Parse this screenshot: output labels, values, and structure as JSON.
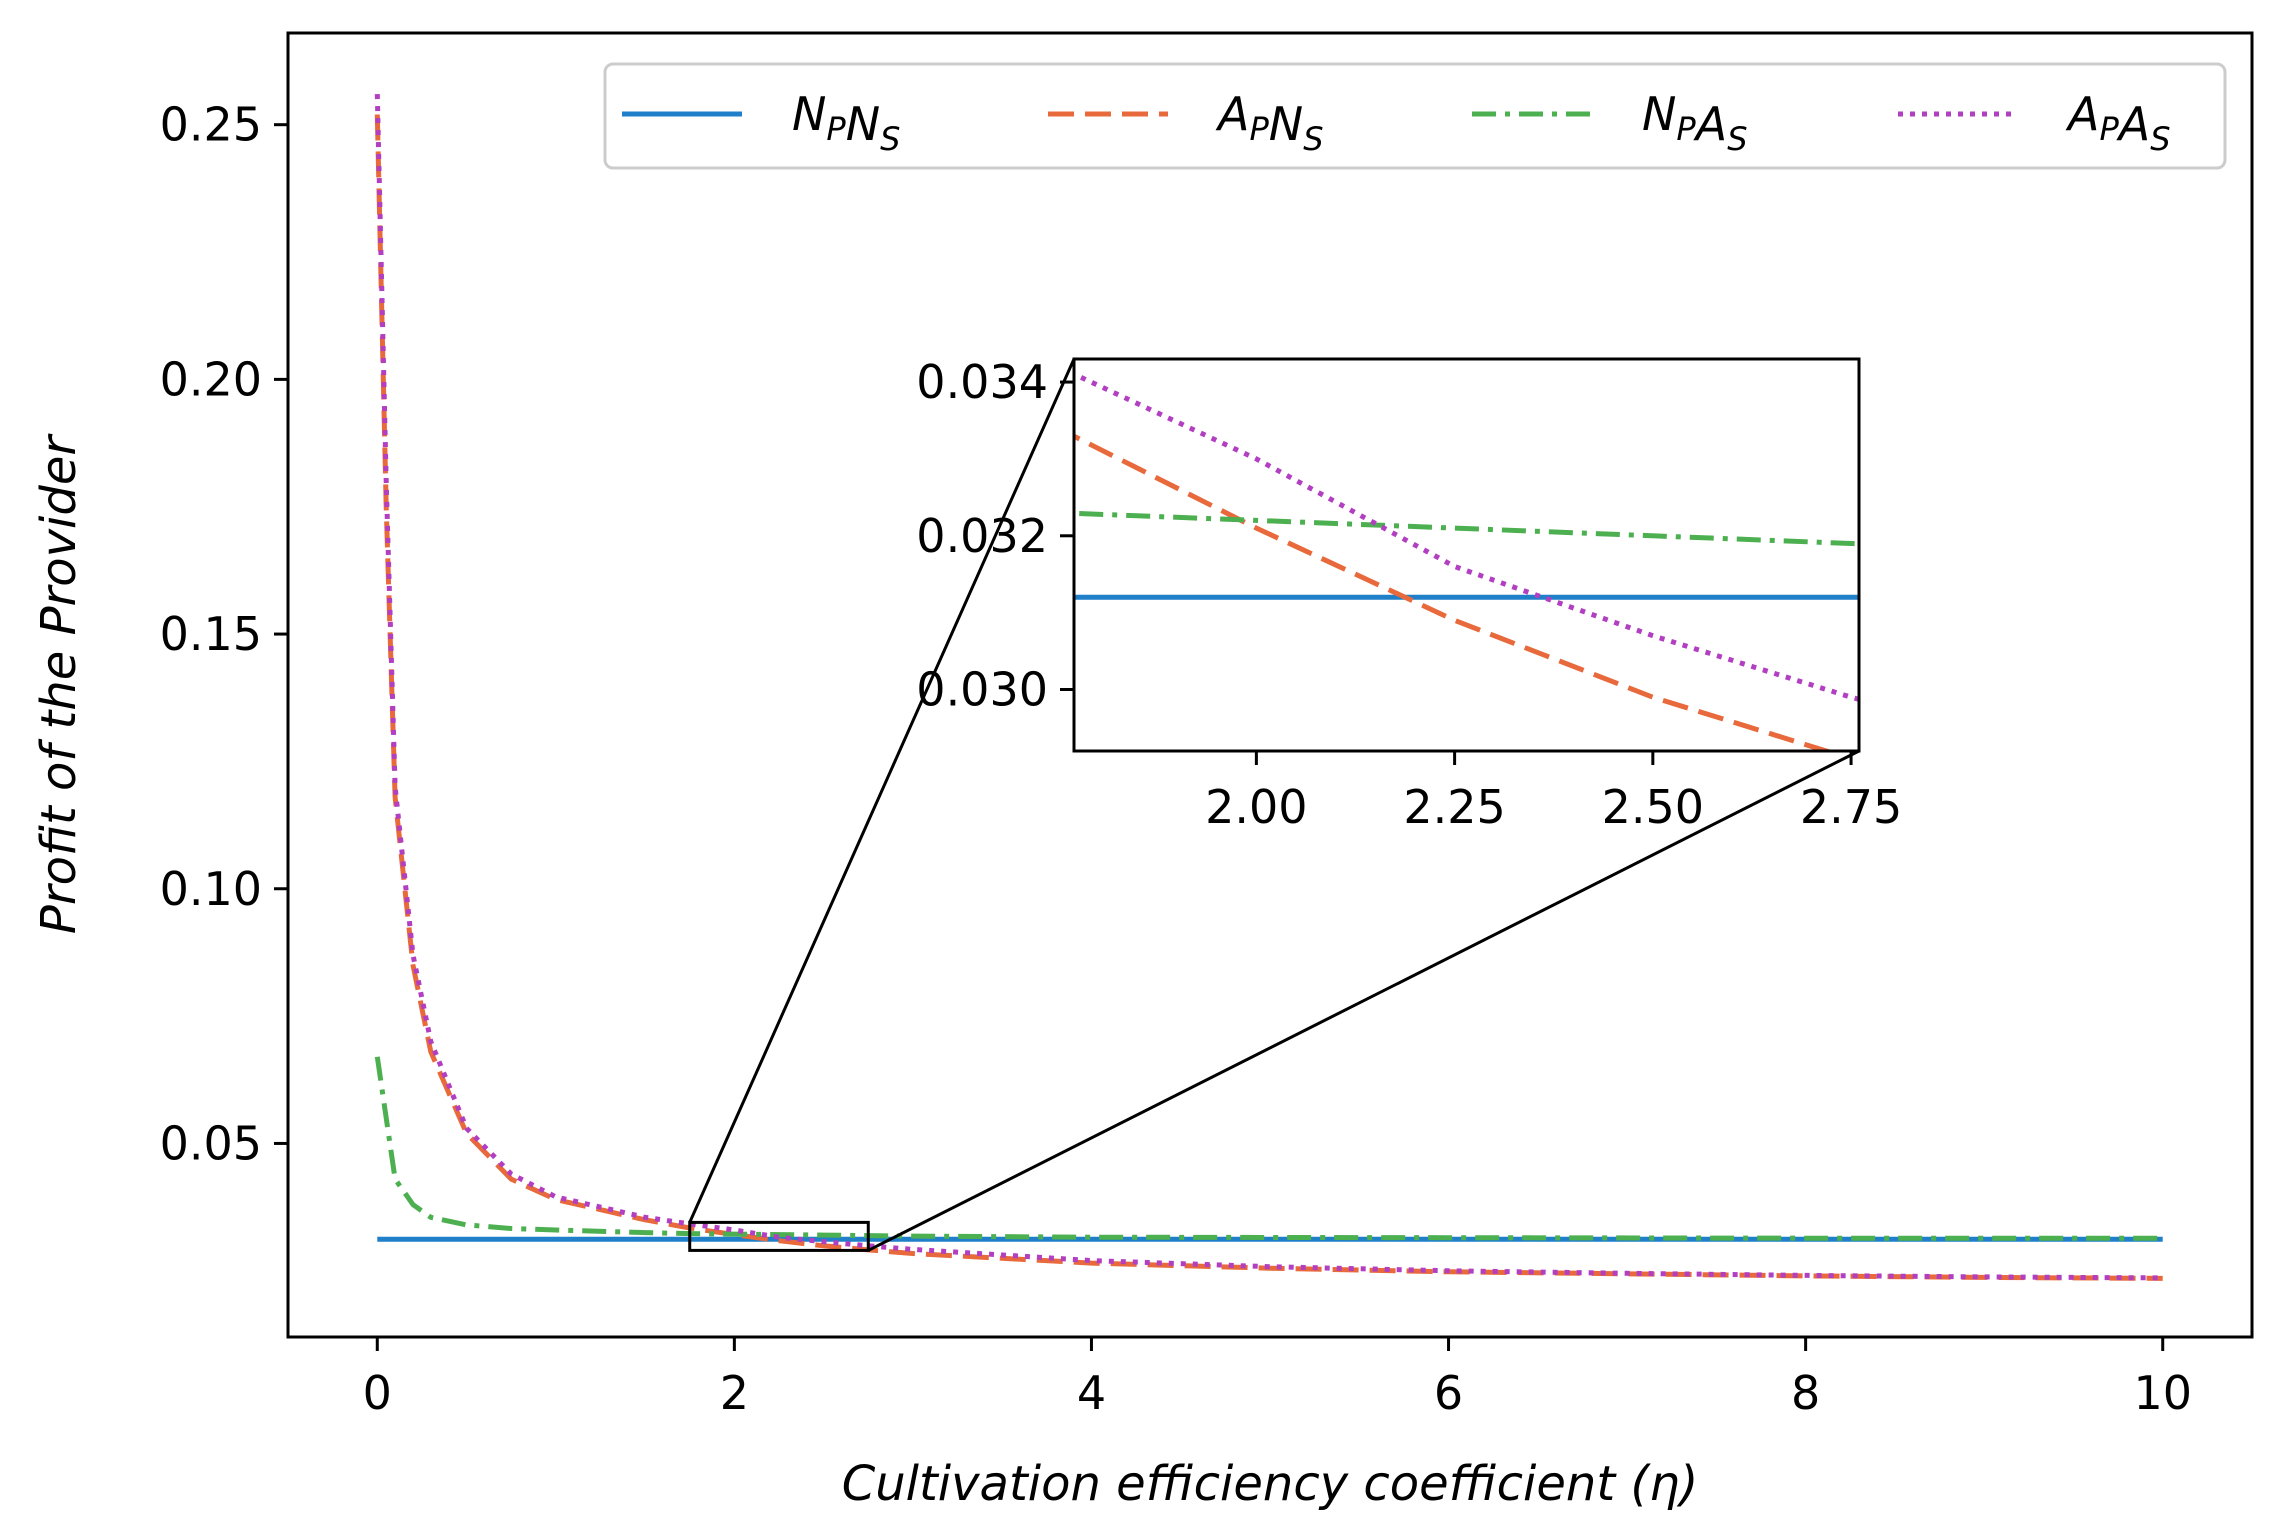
{
  "chart_data": {
    "type": "line",
    "xlabel": "Cultivation efficiency coefficient (η)",
    "ylabel": "Profit of the Provider",
    "xlim": [
      -0.5,
      10.5
    ],
    "ylim": [
      0.012,
      0.268
    ],
    "xticks": [
      0,
      2,
      4,
      6,
      8,
      10
    ],
    "xtick_labels": [
      "0",
      "2",
      "4",
      "6",
      "8",
      "10"
    ],
    "yticks": [
      0.05,
      0.1,
      0.15,
      0.2,
      0.25
    ],
    "ytick_labels": [
      "0.05",
      "0.10",
      "0.15",
      "0.20",
      "0.25"
    ],
    "legend_position": "top-right",
    "series": [
      {
        "name": "NPNS",
        "main": [
          "N",
          "N"
        ],
        "subs": [
          "P",
          "S"
        ],
        "color": "#1f7fc9",
        "style": "solid",
        "x": [
          0,
          10
        ],
        "values": [
          0.0312,
          0.0312
        ]
      },
      {
        "name": "APNS",
        "main": [
          "A",
          "N"
        ],
        "subs": [
          "P",
          "S"
        ],
        "color": "#e8693b",
        "style": "dashed",
        "x": [
          0,
          0.05,
          0.1,
          0.2,
          0.3,
          0.5,
          0.75,
          1.0,
          1.5,
          1.75,
          2.0,
          2.25,
          2.5,
          2.75,
          3.0,
          4.0,
          5.0,
          6.0,
          7.0,
          8.0,
          9.0,
          10.0
        ],
        "values": [
          0.252,
          0.175,
          0.118,
          0.085,
          0.068,
          0.052,
          0.043,
          0.039,
          0.035,
          0.0334,
          0.0321,
          0.0309,
          0.0299,
          0.0291,
          0.0284,
          0.0265,
          0.0255,
          0.0248,
          0.0244,
          0.024,
          0.0237,
          0.0235
        ]
      },
      {
        "name": "NPAS",
        "main": [
          "N",
          "A"
        ],
        "subs": [
          "P",
          "S"
        ],
        "color": "#4caf50",
        "style": "dashdot",
        "x": [
          0,
          0.1,
          0.2,
          0.3,
          0.5,
          0.75,
          1.0,
          1.5,
          1.75,
          2.0,
          2.25,
          2.5,
          2.75,
          3.0,
          4.0,
          6.0,
          8.0,
          10.0
        ],
        "values": [
          0.067,
          0.043,
          0.038,
          0.0355,
          0.034,
          0.0333,
          0.033,
          0.0325,
          0.0323,
          0.0322,
          0.0321,
          0.032,
          0.0319,
          0.0318,
          0.0316,
          0.0315,
          0.0314,
          0.0314
        ]
      },
      {
        "name": "APAS",
        "main": [
          "A",
          "A"
        ],
        "subs": [
          "P",
          "S"
        ],
        "color": "#b23fc2",
        "style": "dotted",
        "x": [
          0,
          0.05,
          0.1,
          0.2,
          0.3,
          0.5,
          0.75,
          1.0,
          1.5,
          1.75,
          2.0,
          2.25,
          2.5,
          2.75,
          3.0,
          4.0,
          5.0,
          6.0,
          7.0,
          8.0,
          9.0,
          10.0
        ],
        "values": [
          0.256,
          0.18,
          0.12,
          0.087,
          0.07,
          0.053,
          0.044,
          0.0395,
          0.0355,
          0.0342,
          0.033,
          0.0316,
          0.0307,
          0.0299,
          0.0292,
          0.027,
          0.0258,
          0.025,
          0.0245,
          0.0241,
          0.0238,
          0.0236
        ]
      }
    ],
    "inset": {
      "xlim": [
        1.77,
        2.76
      ],
      "ylim": [
        0.0292,
        0.0343
      ],
      "xticks": [
        2.0,
        2.25,
        2.5,
        2.75
      ],
      "xtick_labels": [
        "2.00",
        "2.25",
        "2.50",
        "2.75"
      ],
      "yticks": [
        0.03,
        0.032,
        0.034
      ],
      "ytick_labels": [
        "0.030",
        "0.032",
        "0.034"
      ],
      "zoom_region": {
        "x": [
          1.75,
          2.75
        ],
        "y": [
          0.029,
          0.0345
        ]
      }
    }
  }
}
